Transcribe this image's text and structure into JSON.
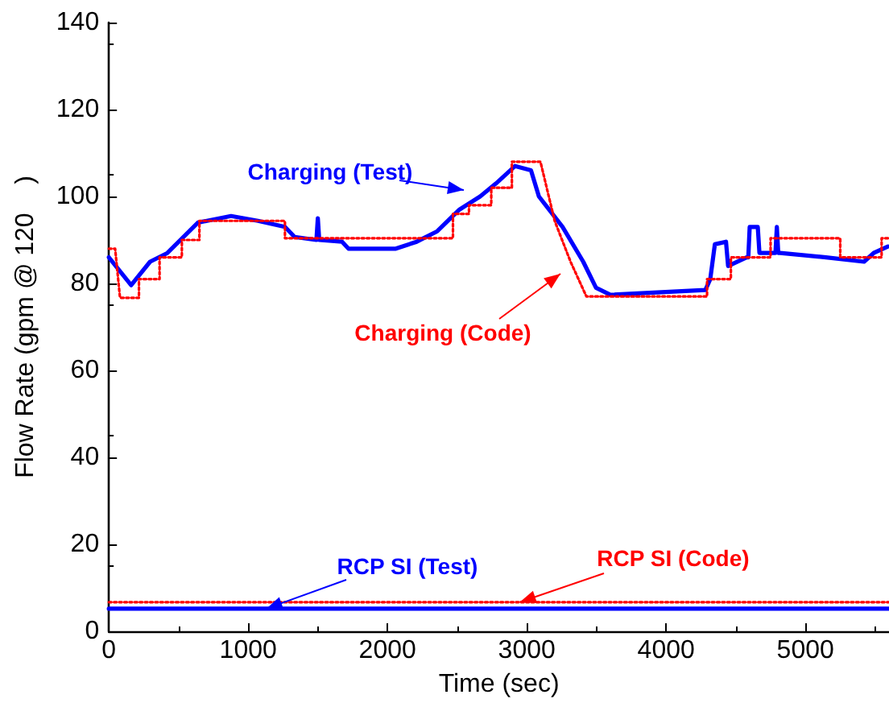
{
  "chart_data": {
    "type": "line",
    "xlabel": "Time (sec)",
    "ylabel": "Flow Rate (gpm @ 120    )",
    "xlim": [
      0,
      5600
    ],
    "xticks": [
      0,
      1000,
      2000,
      3000,
      4000,
      5000
    ],
    "ylim": [
      0,
      140
    ],
    "yticks": [
      0,
      20,
      40,
      60,
      80,
      100,
      120,
      140
    ],
    "grid": false,
    "marker": "none",
    "series": [
      {
        "color": "#0000ff",
        "line_style": "solid",
        "x": [
          0,
          160,
          296,
          420,
          640,
          877,
          1070,
          1264,
          1333,
          1490,
          1500,
          1510,
          1674,
          1720,
          2060,
          2210,
          2357,
          2517,
          2665,
          2779,
          2916,
          3030,
          3087,
          3257,
          3405,
          3497,
          3600,
          4282,
          4317,
          4350,
          4430,
          4445,
          4578,
          4590,
          4600,
          4658,
          4670,
          4681,
          4772,
          4785,
          4795,
          4805,
          4818,
          5148,
          5421,
          5490,
          5592
        ],
        "values": [
          86,
          79.6,
          85,
          87,
          94,
          95.5,
          94.4,
          93,
          90.7,
          90,
          95,
          90,
          89.6,
          88,
          88,
          89.6,
          92,
          97,
          100,
          103,
          107,
          106,
          100,
          93,
          85,
          79,
          77.4,
          78.5,
          81,
          89,
          89.6,
          84,
          86,
          86,
          93,
          93,
          87,
          87,
          87,
          87,
          93,
          87,
          87,
          86,
          85,
          87,
          88.5
        ]
      },
      {
        "color": "#ff0000",
        "line_style": "dotted",
        "x": [
          0,
          45,
          80,
          216,
          216,
          364,
          364,
          524,
          524,
          650,
          650,
          1264,
          1264,
          2470,
          2470,
          2585,
          2585,
          2745,
          2745,
          2893,
          2893,
          3098,
          3200,
          3314,
          3428,
          4294,
          4294,
          4465,
          4465,
          4750,
          4750,
          5250,
          5250,
          5547,
          5547,
          5600
        ],
        "values": [
          88,
          88,
          76.7,
          76.7,
          81,
          81,
          86,
          86,
          90,
          90,
          94.4,
          94.4,
          90.4,
          90.4,
          96,
          96,
          98,
          98,
          102,
          102,
          108,
          108,
          94.4,
          85,
          77,
          77,
          81,
          81,
          86,
          86,
          90.4,
          90.4,
          86,
          86,
          90.4,
          90.4
        ]
      },
      {
        "color": "#0000ff",
        "line_style": "solid",
        "x": [
          0,
          5600
        ],
        "values": [
          5.2,
          5.2
        ]
      },
      {
        "color": "#ff0000",
        "line_style": "dotted",
        "x": [
          0,
          5600
        ],
        "values": [
          6.7,
          6.7
        ]
      }
    ],
    "annotations": [
      "Charging (Test)",
      "Charging (Code)",
      {
        "text": "RCP SI (Test)",
        "x": 1130,
        "y": 5.2
      },
      {
        "text": "RCP SI (Code)",
        "x": 2950,
        "y": 6.7
      }
    ]
  }
}
